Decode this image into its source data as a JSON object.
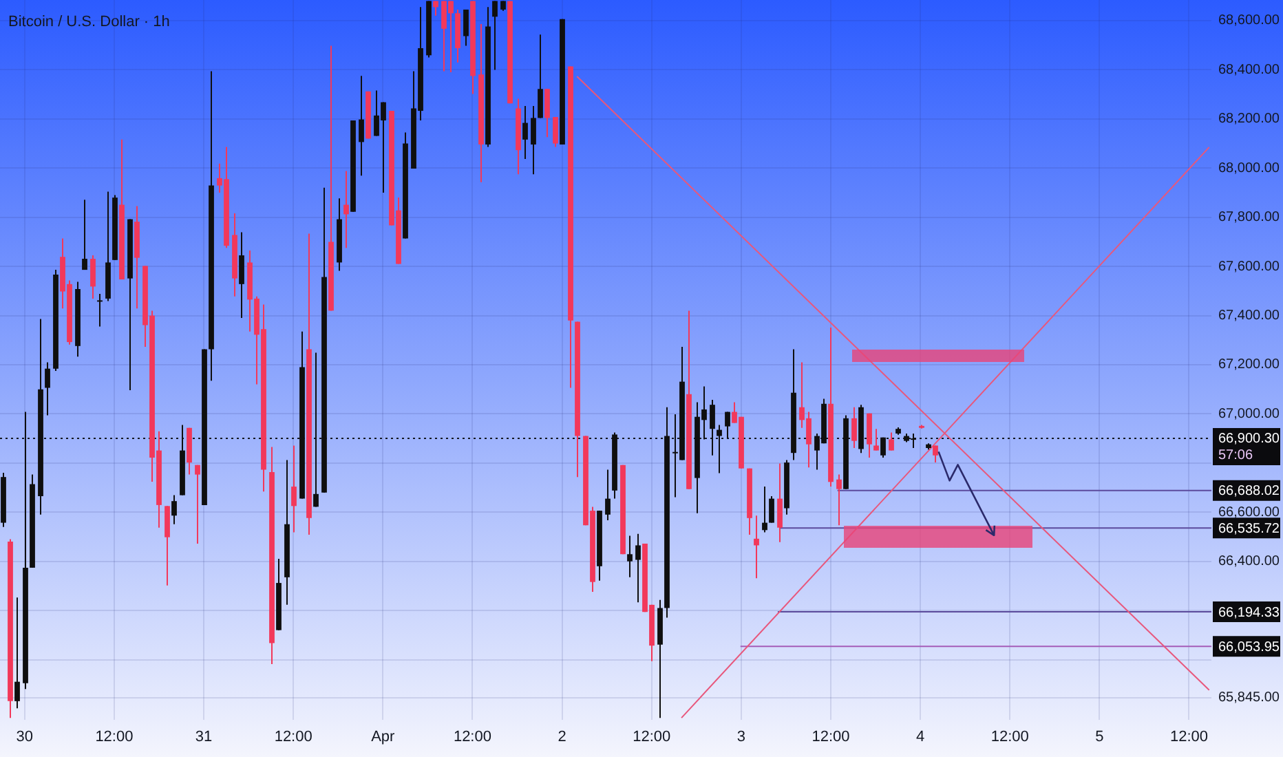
{
  "chart_data": {
    "type": "candlestick",
    "title": "Bitcoin / U.S. Dollar · 1h",
    "x": [
      "--03-29T21:00",
      "--03-29T22:00",
      "--03-29T23:00",
      "--03-30T00:00",
      "--03-30T01:00",
      "--03-30T02:00",
      "--03-30T03:00",
      "--03-30T04:00",
      "--03-30T05:00",
      "--03-30T06:00",
      "--03-30T07:00",
      "--03-30T08:00",
      "--03-30T09:00",
      "--03-30T10:00",
      "--03-30T11:00",
      "--03-30T12:00",
      "--03-30T13:00",
      "--03-30T14:00",
      "--03-30T15:00",
      "--03-30T16:00",
      "--03-30T17:00",
      "--03-30T18:00",
      "--03-30T19:00",
      "--03-30T20:00",
      "--03-30T21:00",
      "--03-30T22:00",
      "--03-30T23:00",
      "--03-31T00:00",
      "--03-31T01:00",
      "--03-31T02:00",
      "--03-31T03:00",
      "--03-31T04:00",
      "--03-31T05:00",
      "--03-31T06:00",
      "--03-31T07:00",
      "--03-31T08:00",
      "--03-31T09:00",
      "--03-31T10:00",
      "--03-31T11:00",
      "--03-31T12:00",
      "--03-31T13:00",
      "--03-31T14:00",
      "--03-31T15:00",
      "--03-31T16:00",
      "--03-31T17:00",
      "--03-31T18:00",
      "--03-31T19:00",
      "--03-31T20:00",
      "--03-31T21:00",
      "--03-31T22:00",
      "--03-31T23:00",
      "--04-01T00:00",
      "--04-01T01:00",
      "--04-01T02:00",
      "--04-01T03:00",
      "--04-01T04:00",
      "--04-01T05:00",
      "--04-01T06:00",
      "--04-01T07:00",
      "--04-01T08:00",
      "--04-01T09:00",
      "--04-01T10:00",
      "--04-01T11:00",
      "--04-01T12:00",
      "--04-01T13:00",
      "--04-01T14:00",
      "--04-01T15:00",
      "--04-01T16:00",
      "--04-01T17:00",
      "--04-01T18:00",
      "--04-01T19:00",
      "--04-01T20:00",
      "--04-01T21:00",
      "--04-01T22:00",
      "--04-01T23:00",
      "--04-02T00:00",
      "--04-02T01:00",
      "--04-02T02:00",
      "--04-02T03:00",
      "--04-02T04:00",
      "--04-02T05:00",
      "--04-02T06:00",
      "--04-02T07:00",
      "--04-02T08:00",
      "--04-02T09:00",
      "--04-02T10:00",
      "--04-02T11:00",
      "--04-02T12:00",
      "--04-02T13:00",
      "--04-02T14:00",
      "--04-02T15:00",
      "--04-02T16:00",
      "--04-02T17:00",
      "--04-02T18:00",
      "--04-02T19:00",
      "--04-02T20:00",
      "--04-02T21:00",
      "--04-02T22:00",
      "--04-02T23:00",
      "--04-03T00:00",
      "--04-03T01:00",
      "--04-03T02:00",
      "--04-03T03:00",
      "--04-03T04:00",
      "--04-03T05:00",
      "--04-03T06:00",
      "--04-03T07:00",
      "--04-03T08:00",
      "--04-03T09:00",
      "--04-03T10:00",
      "--04-03T11:00",
      "--04-03T12:00",
      "--04-03T13:00",
      "--04-03T14:00",
      "--04-03T15:00",
      "--04-03T16:00",
      "--04-03T17:00",
      "--04-03T18:00",
      "--04-03T19:00",
      "--04-03T20:00",
      "--04-03T21:00",
      "--04-03T22:00",
      "--04-03T23:00",
      "--04-04T00:00",
      "--04-04T01:00",
      "--04-04T02:00"
    ],
    "ohlc": [
      [
        66557,
        66760,
        66540,
        66743
      ],
      [
        66480,
        66490,
        65763,
        65831
      ],
      [
        65831,
        66253,
        65802,
        65910
      ],
      [
        65904,
        67008,
        65880,
        66374
      ],
      [
        66374,
        66753,
        66374,
        66714
      ],
      [
        66665,
        67386,
        66590,
        67100
      ],
      [
        67106,
        67210,
        66994,
        67184
      ],
      [
        67184,
        67586,
        67175,
        67567
      ],
      [
        67639,
        67714,
        67429,
        67498
      ],
      [
        67528,
        67543,
        67282,
        67292
      ],
      [
        67276,
        67537,
        67233,
        67508
      ],
      [
        67586,
        67871,
        67586,
        67631
      ],
      [
        67631,
        67645,
        67469,
        67518
      ],
      [
        67459,
        67488,
        67355,
        67462
      ],
      [
        67469,
        67904,
        67459,
        67616
      ],
      [
        67626,
        67890,
        67626,
        67880
      ],
      [
        67851,
        68116,
        67547,
        67547
      ],
      [
        67551,
        67792,
        67096,
        67792
      ],
      [
        67782,
        67845,
        67429,
        67635
      ],
      [
        67602,
        67602,
        67273,
        67361
      ],
      [
        67400,
        67420,
        66724,
        66822
      ],
      [
        66851,
        66929,
        66537,
        66629
      ],
      [
        66625,
        66625,
        66302,
        66498
      ],
      [
        66586,
        66669,
        66551,
        66645
      ],
      [
        66669,
        66955,
        66669,
        66851
      ],
      [
        66943,
        66943,
        66753,
        66802
      ],
      [
        66792,
        66792,
        66472,
        66753
      ],
      [
        66629,
        67263,
        66629,
        67263
      ],
      [
        67263,
        68394,
        67135,
        67929
      ],
      [
        67959,
        68018,
        67900,
        67929
      ],
      [
        67955,
        68086,
        67675,
        67684
      ],
      [
        67728,
        67816,
        67478,
        67551
      ],
      [
        67528,
        67739,
        67390,
        67645
      ],
      [
        67616,
        67665,
        67335,
        67465
      ],
      [
        67469,
        67478,
        67120,
        67322
      ],
      [
        67345,
        67445,
        66684,
        66773
      ],
      [
        66763,
        66865,
        65982,
        66067
      ],
      [
        66120,
        66410,
        66120,
        66312
      ],
      [
        66335,
        66812,
        66223,
        66551
      ],
      [
        66704,
        66871,
        66518,
        66625
      ],
      [
        66655,
        67335,
        66655,
        67190
      ],
      [
        67263,
        67733,
        66508,
        66576
      ],
      [
        66622,
        67249,
        66622,
        66674
      ],
      [
        66680,
        67920,
        66680,
        67557
      ],
      [
        67700,
        68498,
        67420,
        67420
      ],
      [
        67616,
        67877,
        67582,
        67792
      ],
      [
        67851,
        67988,
        67675,
        67812
      ],
      [
        67822,
        68194,
        67822,
        68194
      ],
      [
        68106,
        68375,
        67969,
        68198
      ],
      [
        68312,
        68312,
        68120,
        68120
      ],
      [
        68131,
        68316,
        68131,
        68214
      ],
      [
        68194,
        68268,
        67900,
        68268
      ],
      [
        68233,
        68233,
        67767,
        67767
      ],
      [
        67828,
        67880,
        67610,
        67610
      ],
      [
        67714,
        68145,
        67714,
        68100
      ],
      [
        67998,
        68394,
        67998,
        68243
      ],
      [
        68233,
        68655,
        68194,
        68488
      ],
      [
        68459,
        68680,
        68450,
        68680
      ],
      [
        68680,
        68680,
        68620,
        68655
      ],
      [
        68680,
        68680,
        68394,
        68567
      ],
      [
        68680,
        68680,
        68390,
        68630
      ],
      [
        68630,
        68645,
        68430,
        68488
      ],
      [
        68537,
        68645,
        68498,
        68645
      ],
      [
        68680,
        68680,
        68302,
        68375
      ],
      [
        68381,
        68586,
        67943,
        68096
      ],
      [
        68096,
        68655,
        68086,
        68576
      ],
      [
        68616,
        68680,
        68400,
        68680
      ],
      [
        68645,
        68680,
        68640,
        68680
      ],
      [
        68680,
        68680,
        68263,
        68263
      ],
      [
        68243,
        68282,
        67975,
        68073
      ],
      [
        68116,
        68253,
        68037,
        68184
      ],
      [
        68096,
        68253,
        67975,
        68204
      ],
      [
        68204,
        68543,
        68204,
        68322
      ],
      [
        68322,
        68322,
        68126,
        68204
      ],
      [
        68208,
        68208,
        68086,
        68100
      ],
      [
        68096,
        68606,
        68096,
        68606
      ],
      [
        68414,
        68414,
        67106,
        67380
      ],
      [
        67375,
        67375,
        66743,
        66910
      ],
      [
        66910,
        66910,
        66547,
        66547
      ],
      [
        66606,
        66622,
        66276,
        66316
      ],
      [
        66380,
        66606,
        66321,
        66606
      ],
      [
        66590,
        66773,
        66567,
        66655
      ],
      [
        66688,
        66924,
        66655,
        66916
      ],
      [
        66792,
        66792,
        66429,
        66429
      ],
      [
        66400,
        66504,
        66335,
        66429
      ],
      [
        66406,
        66512,
        66233,
        66465
      ],
      [
        66472,
        66472,
        66194,
        66194
      ],
      [
        66223,
        66223,
        65994,
        66057
      ],
      [
        66061,
        66243,
        65763,
        66210
      ],
      [
        66210,
        67027,
        66171,
        66910
      ],
      [
        66841,
        66998,
        66661,
        66845
      ],
      [
        66812,
        67273,
        66812,
        67131
      ],
      [
        67080,
        67420,
        66694,
        66694
      ],
      [
        66739,
        67047,
        66596,
        66988
      ],
      [
        66975,
        67112,
        66896,
        67018
      ],
      [
        66939,
        67057,
        66831,
        67037
      ],
      [
        66910,
        66955,
        66759,
        66935
      ],
      [
        66949,
        67008,
        66900,
        67008
      ],
      [
        67008,
        67047,
        66963,
        66963
      ],
      [
        66988,
        66988,
        66778,
        66778
      ],
      [
        66778,
        66778,
        66508,
        66576
      ],
      [
        66492,
        66586,
        66331,
        66465
      ],
      [
        66527,
        66704,
        66518,
        66557
      ],
      [
        66557,
        66665,
        66557,
        66655
      ],
      [
        66655,
        66798,
        66478,
        66537
      ],
      [
        66616,
        66812,
        66590,
        66802
      ],
      [
        66841,
        67263,
        66812,
        67086
      ],
      [
        67027,
        67210,
        66943,
        66975
      ],
      [
        66982,
        67008,
        66782,
        66876
      ],
      [
        66851,
        66920,
        66773,
        66910
      ],
      [
        66880,
        67061,
        66880,
        67041
      ],
      [
        67041,
        67351,
        66704,
        66723
      ],
      [
        66733,
        66753,
        66547,
        66694
      ],
      [
        66694,
        66994,
        66694,
        66982
      ],
      [
        66982,
        67027,
        66861,
        66890
      ],
      [
        66857,
        67037,
        66841,
        67027
      ],
      [
        67002,
        67002,
        66822,
        66876
      ],
      [
        66871,
        66939,
        66851,
        66851
      ],
      [
        66831,
        66904,
        66822,
        66904
      ],
      [
        66896,
        66924,
        66851,
        66851
      ],
      [
        66920,
        66945,
        66915,
        66939
      ],
      [
        66890,
        66920,
        66885,
        66910
      ],
      [
        66896,
        66920,
        66861,
        66900
      ],
      [
        66951,
        66955,
        66940,
        66943
      ],
      [
        66861,
        66880,
        66855,
        66876
      ],
      [
        66871,
        66871,
        66802,
        66831
      ]
    ],
    "colors": [
      "#0f0f0f",
      "#f2385a",
      "#0f0f0f",
      "#0f0f0f",
      "#0f0f0f",
      "#0f0f0f",
      "#0f0f0f",
      "#0f0f0f",
      "#f2385a",
      "#f2385a",
      "#0f0f0f",
      "#0f0f0f",
      "#f2385a",
      "#0f0f0f",
      "#0f0f0f",
      "#0f0f0f",
      "#f2385a",
      "#0f0f0f",
      "#f2385a",
      "#f2385a",
      "#f2385a",
      "#f2385a",
      "#f2385a",
      "#0f0f0f",
      "#0f0f0f",
      "#f2385a",
      "#f2385a",
      "#0f0f0f",
      "#0f0f0f",
      "#f2385a",
      "#f2385a",
      "#f2385a",
      "#0f0f0f",
      "#f2385a",
      "#f2385a",
      "#f2385a",
      "#f2385a",
      "#0f0f0f",
      "#0f0f0f",
      "#f2385a",
      "#0f0f0f",
      "#f2385a",
      "#0f0f0f",
      "#0f0f0f",
      "#f2385a",
      "#0f0f0f",
      "#f2385a",
      "#0f0f0f",
      "#0f0f0f",
      "#f2385a",
      "#0f0f0f",
      "#0f0f0f",
      "#f2385a",
      "#f2385a",
      "#0f0f0f",
      "#0f0f0f",
      "#0f0f0f",
      "#0f0f0f",
      "#f2385a",
      "#f2385a",
      "#f2385a",
      "#f2385a",
      "#0f0f0f",
      "#f2385a",
      "#f2385a",
      "#0f0f0f",
      "#0f0f0f",
      "#0f0f0f",
      "#f2385a",
      "#f2385a",
      "#0f0f0f",
      "#0f0f0f",
      "#0f0f0f",
      "#f2385a",
      "#f2385a",
      "#0f0f0f",
      "#f2385a",
      "#f2385a",
      "#f2385a",
      "#f2385a",
      "#0f0f0f",
      "#0f0f0f",
      "#0f0f0f",
      "#f2385a",
      "#0f0f0f",
      "#0f0f0f",
      "#f2385a",
      "#f2385a",
      "#0f0f0f",
      "#0f0f0f",
      "#0f0f0f",
      "#0f0f0f",
      "#f2385a",
      "#0f0f0f",
      "#0f0f0f",
      "#0f0f0f",
      "#0f0f0f",
      "#0f0f0f",
      "#f2385a",
      "#f2385a",
      "#f2385a",
      "#f2385a",
      "#0f0f0f",
      "#0f0f0f",
      "#f2385a",
      "#0f0f0f",
      "#0f0f0f",
      "#f2385a",
      "#f2385a",
      "#0f0f0f",
      "#0f0f0f",
      "#f2385a",
      "#f2385a",
      "#0f0f0f",
      "#f2385a",
      "#0f0f0f",
      "#f2385a",
      "#f2385a",
      "#0f0f0f",
      "#f2385a",
      "#0f0f0f",
      "#0f0f0f",
      "#0f0f0f",
      "#f2385a",
      "#0f0f0f",
      "#f2385a"
    ],
    "xlim": [
      "--03-29T20:42",
      "--04-05T15:00"
    ],
    "xticks": [
      {
        "value": "--03-30",
        "label": "30"
      },
      {
        "value": "--03-30T12:00",
        "label": "12:00"
      },
      {
        "value": "--03-31",
        "label": "31"
      },
      {
        "value": "--03-31T12:00",
        "label": "12:00"
      },
      {
        "value": "--04-01",
        "label": "Apr"
      },
      {
        "value": "--04-01T12:00",
        "label": "12:00"
      },
      {
        "value": "--04-02",
        "label": "2"
      },
      {
        "value": "--04-02T12:00",
        "label": "12:00"
      },
      {
        "value": "--04-03",
        "label": "3"
      },
      {
        "value": "--04-03T12:00",
        "label": "12:00"
      },
      {
        "value": "--04-04",
        "label": "4"
      },
      {
        "value": "--04-04T12:00",
        "label": "12:00"
      },
      {
        "value": "--04-05",
        "label": "5"
      },
      {
        "value": "--04-05T12:00",
        "label": "12:00"
      }
    ],
    "ylim": [
      65755,
      68684
    ],
    "yticks": [
      {
        "value": 68600,
        "label": "68,600.00"
      },
      {
        "value": 68400,
        "label": "68,400.00"
      },
      {
        "value": 68200,
        "label": "68,200.00"
      },
      {
        "value": 68000,
        "label": "68,000.00"
      },
      {
        "value": 67800,
        "label": "67,800.00"
      },
      {
        "value": 67600,
        "label": "67,600.00"
      },
      {
        "value": 67400,
        "label": "67,400.00"
      },
      {
        "value": 67200,
        "label": "67,200.00"
      },
      {
        "value": 67000,
        "label": "67,000.00"
      },
      {
        "value": 66800,
        "label": null
      },
      {
        "value": 66600,
        "label": "66,600.00"
      },
      {
        "value": 66400,
        "label": "66,400.00"
      },
      {
        "value": 66200,
        "label": null
      },
      {
        "value": 66000,
        "label": null
      },
      {
        "value": 65845,
        "label": "65,845.00"
      }
    ],
    "grid": true,
    "series": [
      {
        "type": "line",
        "x": [
          "--04-02T02:00",
          "--04-05T14:42"
        ],
        "values": [
          68373,
          65876
        ],
        "color": "#e8577c"
      },
      {
        "type": "line",
        "x": [
          "--04-02T16:00",
          "--04-05T14:42"
        ],
        "values": [
          65763,
          68085
        ],
        "color": "#e8577c"
      },
      {
        "type": "line",
        "x": [
          "--04-03T12:54",
          "--04-05T15:00"
        ],
        "values": [
          66688.02,
          66688.02
        ],
        "color": "#5b4a9c",
        "value_labels": [
          null,
          "66,688.02"
        ]
      },
      {
        "type": "line",
        "x": [
          "--04-03T05:06",
          "--04-05T15:00"
        ],
        "values": [
          66535.72,
          66535.72
        ],
        "color": "#5b4a9c",
        "value_labels": [
          null,
          "66,535.72"
        ]
      },
      {
        "type": "line",
        "x": [
          "--04-03T04:54",
          "--04-05T15:00"
        ],
        "values": [
          66194.33,
          66194.33
        ],
        "color": "#5b4a9c",
        "value_labels": [
          null,
          "66,194.33"
        ]
      },
      {
        "type": "line",
        "x": [
          "--04-02T23:54",
          "--04-05T15:00"
        ],
        "values": [
          66053.95,
          66053.95
        ],
        "color": "#a55cb8",
        "value_labels": [
          null,
          "66,053.95"
        ]
      }
    ],
    "ref_lines": [
      {
        "axis": "y",
        "value": 66900.3,
        "label": "66,900.30",
        "color": "#131722",
        "line_style": "dotted"
      }
    ],
    "annotations": [
      "57:06"
    ]
  }
}
